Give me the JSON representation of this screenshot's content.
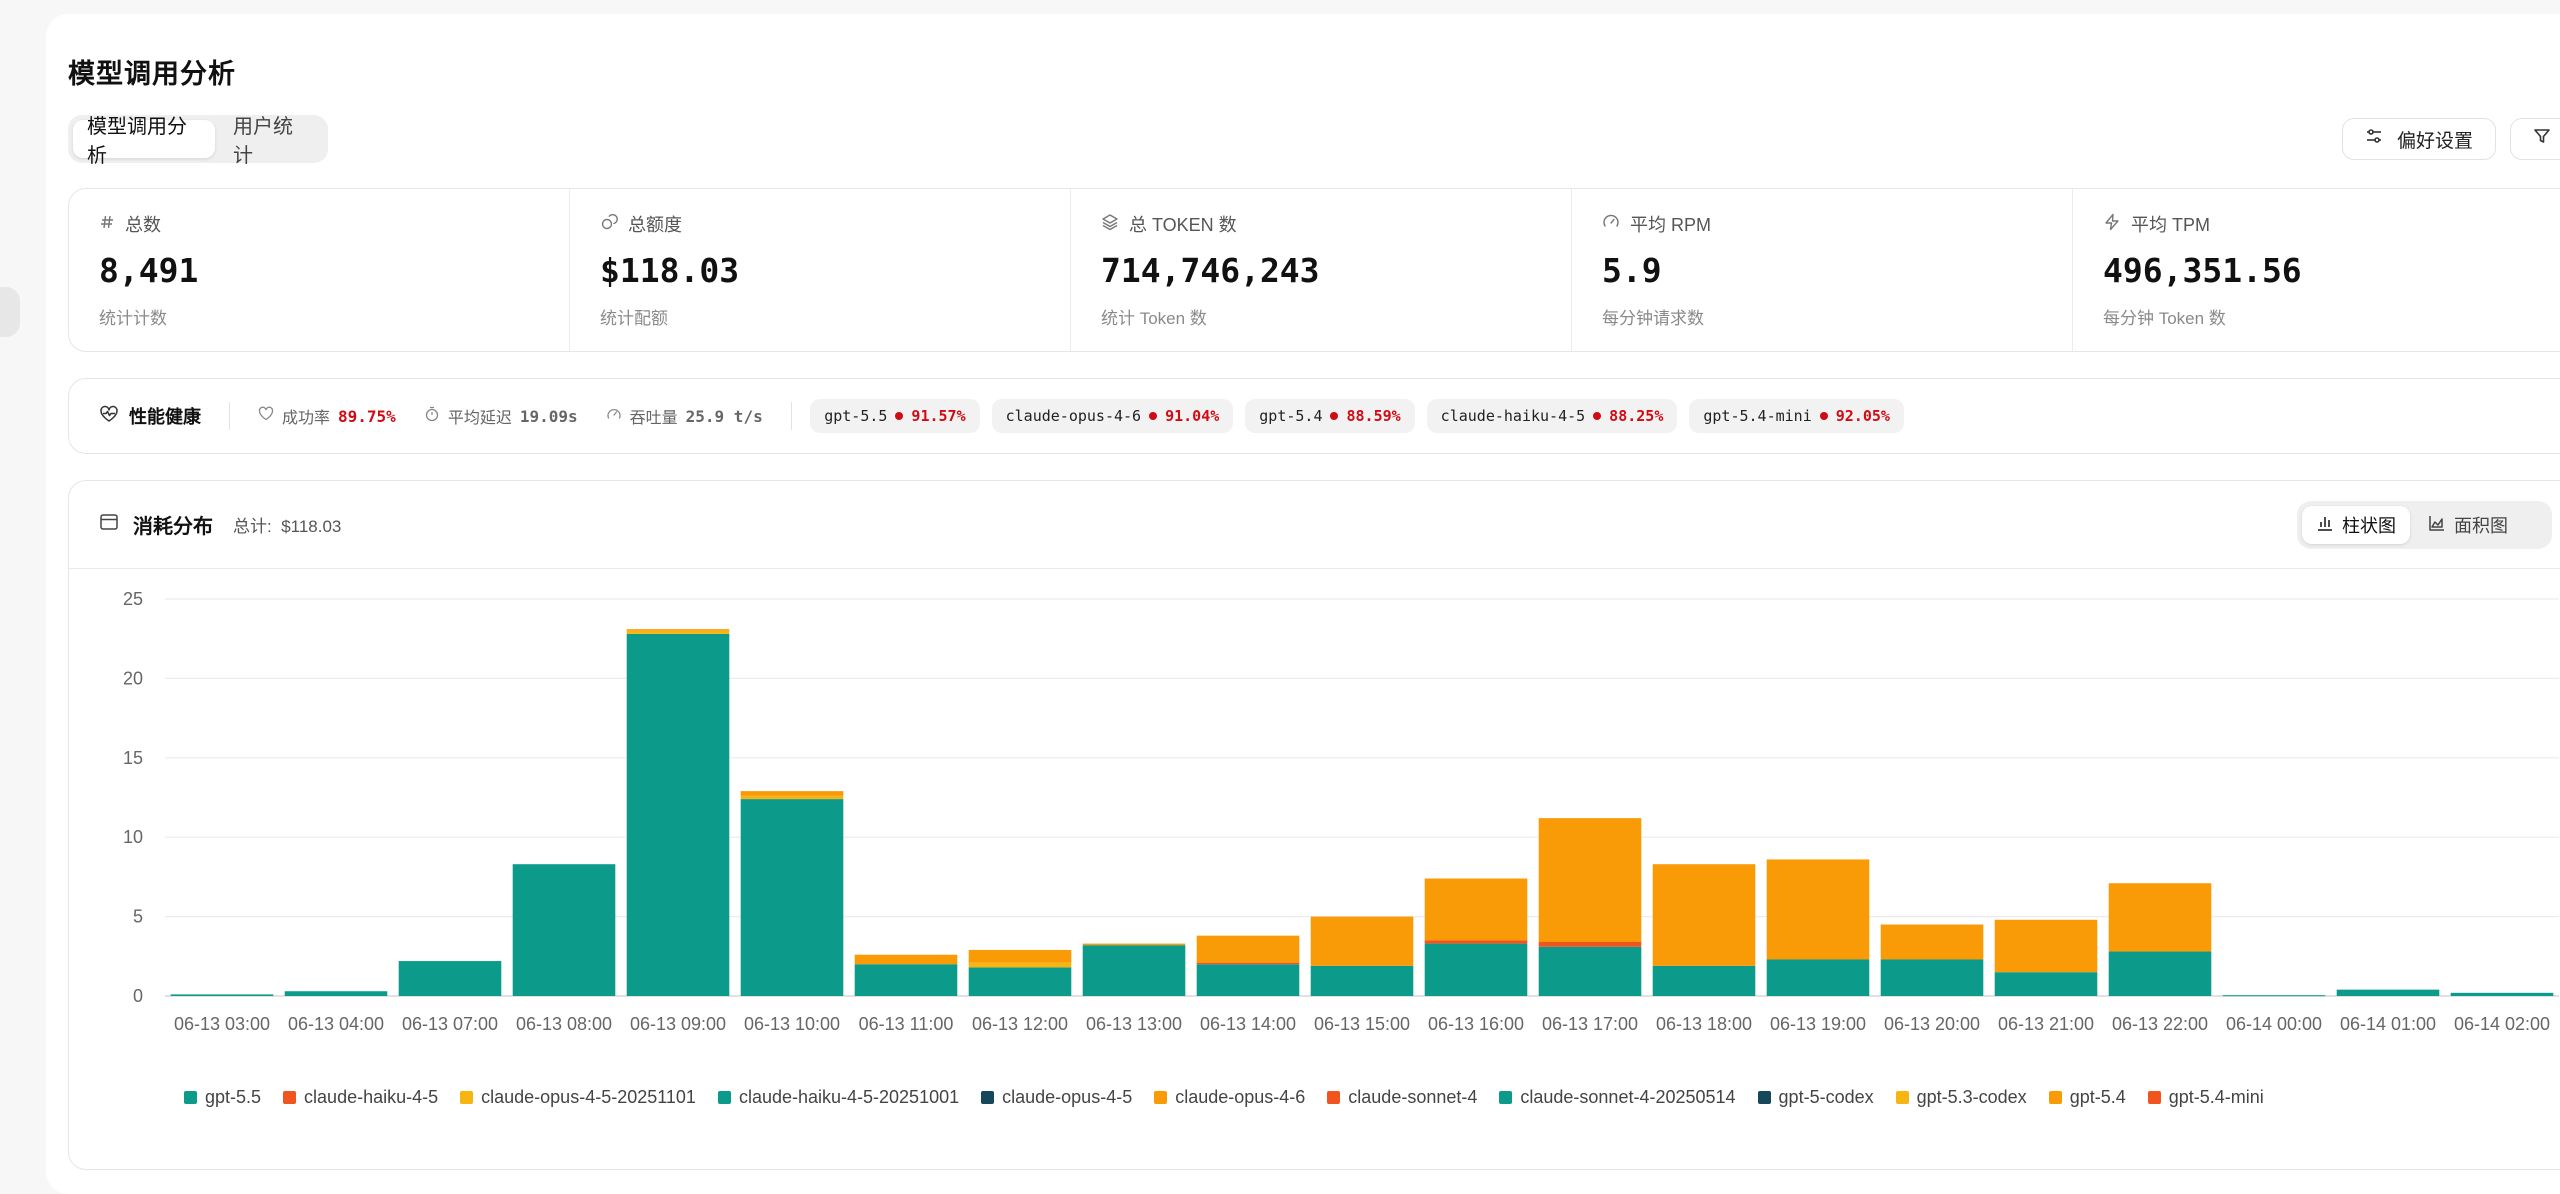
{
  "page": {
    "title": "模型调用分析"
  },
  "tabs": [
    {
      "label": "模型调用分析",
      "active": true
    },
    {
      "label": "用户统计",
      "active": false
    }
  ],
  "actions": {
    "preferences_label": "偏好设置",
    "filter_label": "筛选"
  },
  "stats": [
    {
      "icon": "hash-icon",
      "label": "总数",
      "value": "8,491",
      "sub": "统计计数"
    },
    {
      "icon": "coins-icon",
      "label": "总额度",
      "value": "$118.03",
      "sub": "统计配额"
    },
    {
      "icon": "layers-icon",
      "label": "总 TOKEN 数",
      "value": "714,746,243",
      "sub": "统计 Token 数"
    },
    {
      "icon": "gauge-icon",
      "label": "平均 RPM",
      "value": "5.9",
      "sub": "每分钟请求数"
    },
    {
      "icon": "zap-icon",
      "label": "平均 TPM",
      "value": "496,351.56",
      "sub": "每分钟 Token 数"
    }
  ],
  "health": {
    "title": "性能健康",
    "success_label": "成功率",
    "success_value": "89.75%",
    "latency_label": "平均延迟",
    "latency_value": "19.09s",
    "throughput_label": "吞吐量",
    "throughput_value": "25.9 t/s",
    "models": [
      {
        "name": "gpt-5.5",
        "pct": "91.57%"
      },
      {
        "name": "claude-opus-4-6",
        "pct": "91.04%"
      },
      {
        "name": "gpt-5.4",
        "pct": "88.59%"
      },
      {
        "name": "claude-haiku-4-5",
        "pct": "88.25%"
      },
      {
        "name": "gpt-5.4-mini",
        "pct": "92.05%"
      }
    ],
    "alert_color": "#d10b14"
  },
  "chart_section": {
    "title": "消耗分布",
    "total_label": "总计:",
    "total_value": "$118.03",
    "view_bar_label": "柱状图",
    "view_area_label": "面积图"
  },
  "chart_data": {
    "type": "bar",
    "stacked": true,
    "ylim": [
      0,
      25
    ],
    "yticks": [
      0,
      5,
      10,
      15,
      20,
      25
    ],
    "grid": true,
    "legend_position": "bottom",
    "categories": [
      "06-13 03:00",
      "06-13 04:00",
      "06-13 07:00",
      "06-13 08:00",
      "06-13 09:00",
      "06-13 10:00",
      "06-13 11:00",
      "06-13 12:00",
      "06-13 13:00",
      "06-13 14:00",
      "06-13 15:00",
      "06-13 16:00",
      "06-13 17:00",
      "06-13 18:00",
      "06-13 19:00",
      "06-13 20:00",
      "06-13 21:00",
      "06-13 22:00",
      "06-14 00:00",
      "06-14 01:00",
      "06-14 02:00"
    ],
    "series": [
      {
        "name": "gpt-5.5",
        "color": "#0c9a8a",
        "values": [
          0.1,
          0.3,
          2.2,
          8.3,
          22.8,
          12.4,
          2.0,
          1.8,
          3.2,
          2.0,
          1.9,
          3.3,
          3.1,
          1.9,
          2.3,
          2.3,
          1.5,
          2.8,
          0.05,
          0.4,
          0.2
        ]
      },
      {
        "name": "claude-haiku-4-5",
        "color": "#f0541f",
        "values": [
          0,
          0,
          0,
          0,
          0,
          0,
          0,
          0,
          0,
          0.1,
          0,
          0.2,
          0.3,
          0,
          0,
          0,
          0,
          0,
          0,
          0,
          0
        ]
      },
      {
        "name": "claude-opus-4-5-20251101",
        "color": "#f7b512",
        "values": [
          0,
          0,
          0,
          0,
          0.2,
          0.2,
          0,
          0.3,
          0,
          0,
          0,
          0,
          0,
          0,
          0,
          0,
          0,
          0,
          0,
          0,
          0
        ]
      },
      {
        "name": "claude-haiku-4-5-20251001",
        "color": "#0c9a8a",
        "values": [
          0,
          0,
          0,
          0,
          0,
          0,
          0,
          0,
          0,
          0,
          0,
          0,
          0,
          0,
          0,
          0,
          0,
          0,
          0,
          0,
          0
        ]
      },
      {
        "name": "claude-opus-4-5",
        "color": "#16485c",
        "values": [
          0,
          0,
          0,
          0,
          0,
          0,
          0,
          0,
          0,
          0,
          0,
          0,
          0,
          0,
          0,
          0,
          0,
          0,
          0,
          0,
          0
        ]
      },
      {
        "name": "claude-opus-4-6",
        "color": "#f99a07",
        "values": [
          0,
          0,
          0,
          0,
          0.1,
          0.3,
          0.6,
          0.8,
          0.1,
          1.7,
          3.1,
          3.9,
          7.8,
          6.4,
          6.3,
          2.2,
          3.3,
          4.3,
          0,
          0,
          0
        ]
      },
      {
        "name": "claude-sonnet-4",
        "color": "#f0541f",
        "values": [
          0,
          0,
          0,
          0,
          0,
          0,
          0,
          0,
          0,
          0,
          0,
          0,
          0,
          0,
          0,
          0,
          0,
          0,
          0,
          0,
          0
        ]
      },
      {
        "name": "claude-sonnet-4-20250514",
        "color": "#0c9a8a",
        "values": [
          0,
          0,
          0,
          0,
          0,
          0,
          0,
          0,
          0,
          0,
          0,
          0,
          0,
          0,
          0,
          0,
          0,
          0,
          0,
          0,
          0
        ]
      },
      {
        "name": "gpt-5-codex",
        "color": "#16485c",
        "values": [
          0,
          0,
          0,
          0,
          0,
          0,
          0,
          0,
          0,
          0,
          0,
          0,
          0,
          0,
          0,
          0,
          0,
          0,
          0,
          0,
          0
        ]
      },
      {
        "name": "gpt-5.3-codex",
        "color": "#f7b512",
        "values": [
          0,
          0,
          0,
          0,
          0,
          0,
          0,
          0,
          0,
          0,
          0,
          0,
          0,
          0,
          0,
          0,
          0,
          0,
          0,
          0,
          0
        ]
      },
      {
        "name": "gpt-5.4",
        "color": "#f99a07",
        "values": [
          0,
          0,
          0,
          0,
          0,
          0,
          0,
          0,
          0,
          0,
          0,
          0,
          0,
          0,
          0,
          0,
          0,
          0,
          0,
          0,
          0
        ]
      },
      {
        "name": "gpt-5.4-mini",
        "color": "#f0541f",
        "values": [
          0,
          0,
          0,
          0,
          0,
          0,
          0,
          0,
          0,
          0,
          0,
          0,
          0,
          0,
          0,
          0,
          0,
          0,
          0,
          0,
          0
        ]
      }
    ]
  }
}
